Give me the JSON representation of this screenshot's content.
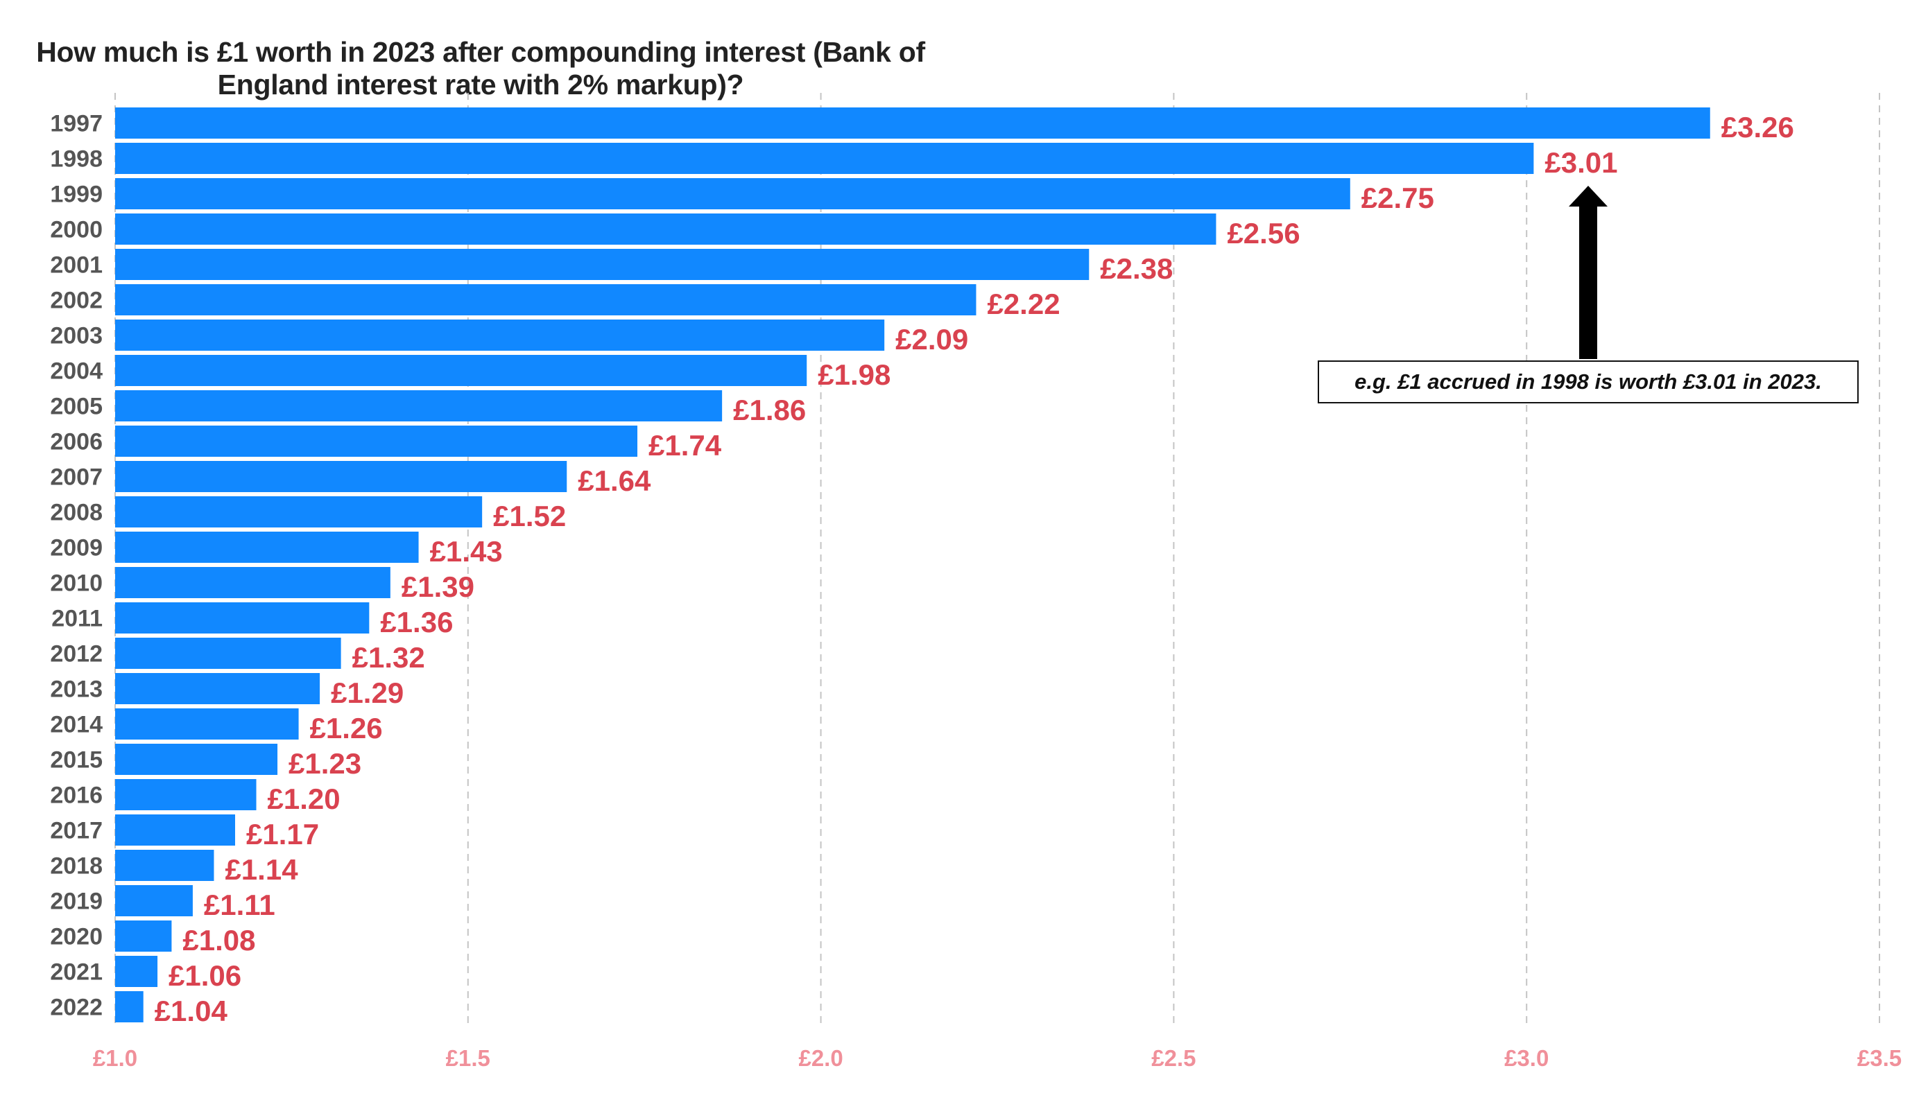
{
  "chart_data": {
    "type": "bar",
    "orientation": "horizontal",
    "title": "How much is £1 worth in 2023 after compounding interest (Bank of England interest rate with 2% markup)?",
    "xlabel": "",
    "ylabel": "",
    "xlim": [
      1.0,
      3.5
    ],
    "x_ticks": [
      1.0,
      1.5,
      2.0,
      2.5,
      3.0,
      3.5
    ],
    "x_tick_labels": [
      "£1.0",
      "£1.5",
      "£2.0",
      "£2.5",
      "£3.0",
      "£3.5"
    ],
    "grid": "vertical dashed",
    "categories": [
      "1997",
      "1998",
      "1999",
      "2000",
      "2001",
      "2002",
      "2003",
      "2004",
      "2005",
      "2006",
      "2007",
      "2008",
      "2009",
      "2010",
      "2011",
      "2012",
      "2013",
      "2014",
      "2015",
      "2016",
      "2017",
      "2018",
      "2019",
      "2020",
      "2021",
      "2022"
    ],
    "values": [
      3.26,
      3.01,
      2.75,
      2.56,
      2.38,
      2.22,
      2.09,
      1.98,
      1.86,
      1.74,
      1.64,
      1.52,
      1.43,
      1.39,
      1.36,
      1.32,
      1.29,
      1.26,
      1.23,
      1.2,
      1.17,
      1.14,
      1.11,
      1.08,
      1.06,
      1.04
    ],
    "data_labels": [
      "£3.26",
      "£3.01",
      "£2.75",
      "£2.56",
      "£2.38",
      "£2.22",
      "£2.09",
      "£1.98",
      "£1.86",
      "£1.74",
      "£1.64",
      "£1.52",
      "£1.43",
      "£1.39",
      "£1.36",
      "£1.32",
      "£1.29",
      "£1.26",
      "£1.23",
      "£1.20",
      "£1.17",
      "£1.14",
      "£1.11",
      "£1.08",
      "£1.06",
      "£1.04"
    ],
    "annotation": {
      "text": "e.g. £1 accrued in 1998 is worth £3.01 in 2023.",
      "points_to": "1998"
    },
    "colors": {
      "bar": "#1188ff",
      "data_label": "#d9424f",
      "tick_label": "#f0909a",
      "category_label": "#555555",
      "grid": "#c4c4c4",
      "arrow": "#000000"
    }
  }
}
